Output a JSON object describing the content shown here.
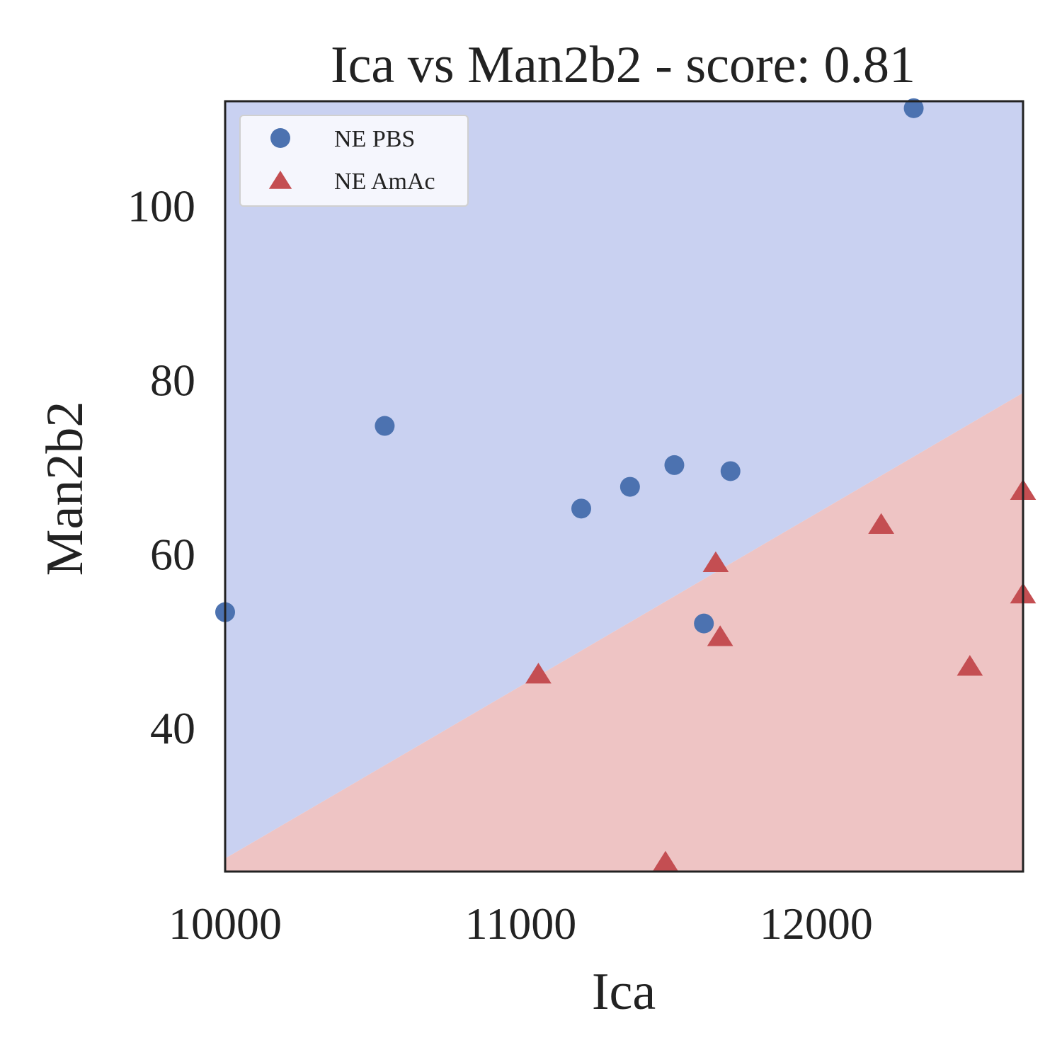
{
  "chart_data": {
    "type": "scatter",
    "title": "Ica vs Man2b2 - score: 0.81",
    "xlabel": "Ica",
    "ylabel": "Man2b2",
    "xlim": [
      10000,
      12700
    ],
    "ylim": [
      23.5,
      112
    ],
    "x_ticks": [
      10000,
      11000,
      12000
    ],
    "y_ticks": [
      40,
      60,
      80,
      100
    ],
    "grid": false,
    "legend_position": "top-left",
    "decision_boundary": {
      "x": [
        10000,
        12700
      ],
      "y": [
        25,
        78.5
      ]
    },
    "regions": [
      {
        "class": "NE PBS",
        "side": "above",
        "color": "#c9d1f1"
      },
      {
        "class": "NE AmAc",
        "side": "below",
        "color": "#eec4c4"
      }
    ],
    "series": [
      {
        "name": "NE PBS",
        "marker": "circle",
        "color": "#4c72b0",
        "points": [
          {
            "x": 10000,
            "y": 53.3
          },
          {
            "x": 10540,
            "y": 74.7
          },
          {
            "x": 11205,
            "y": 65.2
          },
          {
            "x": 11370,
            "y": 67.7
          },
          {
            "x": 11520,
            "y": 70.2
          },
          {
            "x": 11620,
            "y": 52.0
          },
          {
            "x": 11710,
            "y": 69.5
          },
          {
            "x": 12330,
            "y": 111.2
          }
        ]
      },
      {
        "name": "NE AmAc",
        "marker": "triangle",
        "color": "#c44e52",
        "points": [
          {
            "x": 11060,
            "y": 46.1
          },
          {
            "x": 11490,
            "y": 24.5
          },
          {
            "x": 11660,
            "y": 58.9
          },
          {
            "x": 11675,
            "y": 50.4
          },
          {
            "x": 12220,
            "y": 63.3
          },
          {
            "x": 12520,
            "y": 47.0
          },
          {
            "x": 12700,
            "y": 67.2
          },
          {
            "x": 12700,
            "y": 55.3
          }
        ]
      }
    ]
  }
}
